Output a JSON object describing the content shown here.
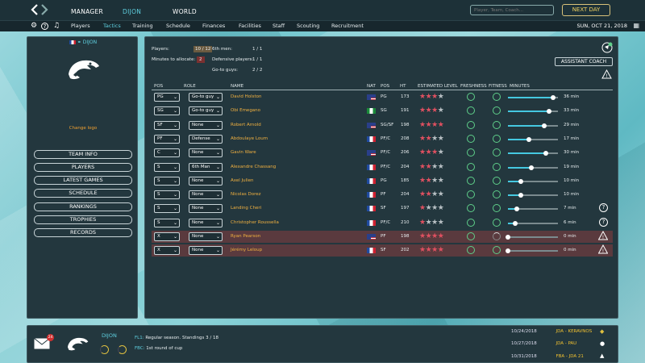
{
  "topbar": {
    "nav": [
      {
        "label": "MANAGER",
        "active": false
      },
      {
        "label": "DIJON",
        "active": true
      },
      {
        "label": "WORLD",
        "active": false
      }
    ],
    "search_placeholder": "Player, Team, Coach...",
    "next_day": "NEXT DAY"
  },
  "subbar": {
    "icons": [
      "gear-icon",
      "help-icon",
      "music-icon"
    ],
    "tabs": [
      {
        "label": "Players",
        "active": false
      },
      {
        "label": "Tactics",
        "active": true
      },
      {
        "label": "Training",
        "active": false
      },
      {
        "label": "Schedule",
        "active": false
      },
      {
        "label": "Finances",
        "active": false
      },
      {
        "label": "Facilities",
        "active": false
      },
      {
        "label": "Staff",
        "active": false
      },
      {
        "label": "Scouting",
        "active": false
      },
      {
        "label": "Recruitment",
        "active": false
      }
    ],
    "date": "SUN, OCT 21, 2018"
  },
  "left": {
    "club": "DIJON",
    "change_logo": "Change logo",
    "buttons": [
      "TEAM INFO",
      "PLAYERS",
      "LATEST GAMES",
      "SCHEDULE",
      "RANKINGS",
      "TROPHIES",
      "RECORDS"
    ]
  },
  "tactics": {
    "players_label": "Players:",
    "players_value": "10 / 12",
    "minutes_label": "Minutes to allocate:",
    "minutes_value": "2",
    "sixth_label": "6th men:",
    "sixth_value": "1 / 1",
    "defensive_label": "Defensive players:",
    "defensive_value": "1 / 1",
    "goto_label": "Go-to guys:",
    "goto_value": "2 / 2",
    "assistant": "ASSISTANT COACH",
    "headers": {
      "pos": "POS",
      "role": "ROLE",
      "name": "NAME",
      "nat": "NAT",
      "pos2": "POS",
      "ht": "HT",
      "level": "ESTIMATED LEVEL",
      "freshness": "FRESHNESS",
      "fitness": "FITNESS",
      "minutes": "MINUTES"
    },
    "colors": {
      "star_on": "#e05060",
      "star_off": "#b8c0c4",
      "slider": "#45c8e0",
      "name": "#f0b040"
    },
    "rows": [
      {
        "pos": "PG",
        "role": "Go-to guy",
        "name": "David Holston",
        "nat": "us",
        "pos2": "PG",
        "ht": "173",
        "stars": 3,
        "minutes": 36,
        "min_label": "36 min",
        "fresh": "ok",
        "fit": "ok",
        "icon": ""
      },
      {
        "pos": "SG",
        "role": "Go-to guy",
        "name": "Obi Emegano",
        "nat": "ng",
        "pos2": "SG",
        "ht": "191",
        "stars": 3,
        "minutes": 33,
        "min_label": "33 min",
        "fresh": "ok",
        "fit": "ok",
        "icon": ""
      },
      {
        "pos": "SF",
        "role": "None",
        "name": "Robert Arnold",
        "nat": "us",
        "pos2": "SG/SF",
        "ht": "198",
        "stars": 4,
        "minutes": 29,
        "min_label": "29 min",
        "fresh": "ok",
        "fit": "ok",
        "icon": ""
      },
      {
        "pos": "PF",
        "role": "Defense",
        "name": "Abdoulaye Loum",
        "nat": "fr",
        "pos2": "PF/C",
        "ht": "208",
        "stars": 2,
        "minutes": 17,
        "min_label": "17 min",
        "fresh": "ok",
        "fit": "ok",
        "icon": ""
      },
      {
        "pos": "C",
        "role": "None",
        "name": "Gavin Ware",
        "nat": "us",
        "pos2": "PF/C",
        "ht": "206",
        "stars": 3,
        "minutes": 30,
        "min_label": "30 min",
        "fresh": "ok",
        "fit": "ok",
        "icon": ""
      },
      {
        "pos": "S",
        "role": "6th Man",
        "name": "Alexandre Chassang",
        "nat": "fr",
        "pos2": "PF/C",
        "ht": "204",
        "stars": 2,
        "minutes": 19,
        "min_label": "19 min",
        "fresh": "ok",
        "fit": "ok",
        "icon": ""
      },
      {
        "pos": "S",
        "role": "None",
        "name": "Axel Julien",
        "nat": "fr",
        "pos2": "PG",
        "ht": "185",
        "stars": 2,
        "minutes": 10,
        "min_label": "10 min",
        "fresh": "ok",
        "fit": "ok",
        "icon": ""
      },
      {
        "pos": "S",
        "role": "None",
        "name": "Nicolas Dorez",
        "nat": "fr",
        "pos2": "PF",
        "ht": "204",
        "stars": 2,
        "minutes": 10,
        "min_label": "10 min",
        "fresh": "ok",
        "fit": "ok",
        "icon": ""
      },
      {
        "pos": "S",
        "role": "None",
        "name": "Landing Cheri",
        "nat": "fr",
        "pos2": "SF",
        "ht": "197",
        "stars": 1,
        "minutes": 7,
        "min_label": "7 min",
        "fresh": "ok",
        "fit": "ok",
        "icon": "help"
      },
      {
        "pos": "S",
        "role": "None",
        "name": "Christopher Roussella",
        "nat": "fr",
        "pos2": "PF/C",
        "ht": "210",
        "stars": 1,
        "minutes": 6,
        "min_label": "6 min",
        "fresh": "ok",
        "fit": "ok",
        "icon": "help"
      },
      {
        "pos": "X",
        "role": "None",
        "name": "Ryan Pearson",
        "nat": "us",
        "pos2": "PF",
        "ht": "198",
        "stars": 4,
        "minutes": 0,
        "min_label": "0 min",
        "fresh": "ok",
        "fit": "low",
        "icon": "warn",
        "injured": true
      },
      {
        "pos": "X",
        "role": "None",
        "name": "Jérémy Leloup",
        "nat": "fr",
        "pos2": "SF",
        "ht": "202",
        "stars": 4,
        "minutes": 0,
        "min_label": "0 min",
        "fresh": "ok",
        "fit": "ok",
        "icon": "warn",
        "injured": true
      }
    ]
  },
  "bottom": {
    "mail_count": "24",
    "club": "DIJON",
    "fl1_label": "FL1:",
    "fl1_text": "Regular season. Standings 3 / 18",
    "fbc_label": "FBC:",
    "fbc_text": "1st round of cup",
    "games": [
      {
        "date": "10/24/2018",
        "opp": "JDA - KERAVNOS"
      },
      {
        "date": "10/27/2018",
        "opp": "JDA - PAU"
      },
      {
        "date": "10/31/2018",
        "opp": "FBA - JDA 21"
      }
    ]
  }
}
